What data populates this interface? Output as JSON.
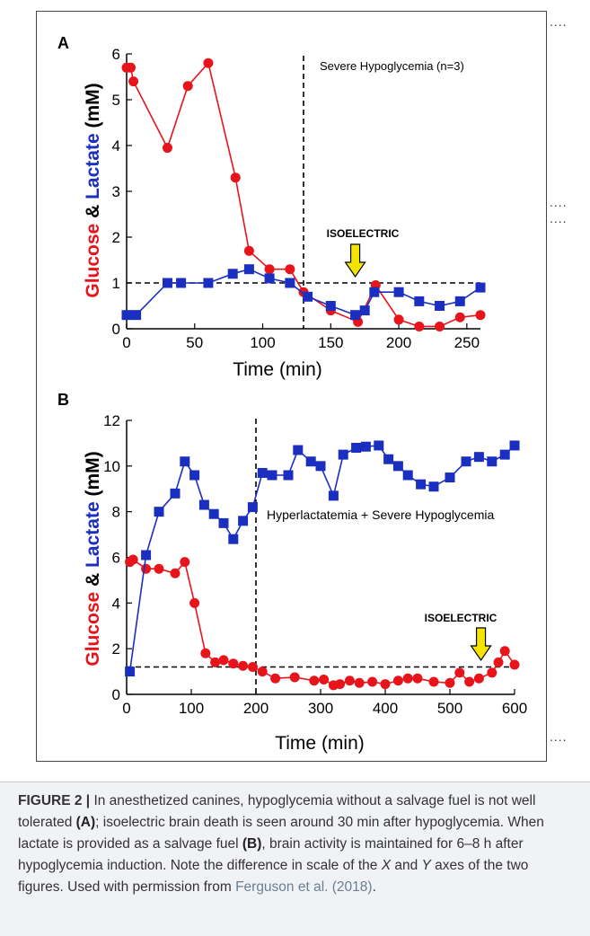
{
  "panels": [
    {
      "label": "A",
      "annotation": "Severe Hypoglycemia (n=3)",
      "isoelectric_label": "ISOELECTRIC",
      "ylabel": {
        "part1": "Glucose",
        "part2": " & ",
        "part3": "Lactate",
        "part4": " (mM)"
      },
      "xlabel": "Time (min)"
    },
    {
      "label": "B",
      "annotation": "Hyperlactatemia + Severe Hypoglycemia",
      "isoelectric_label": "ISOELECTRIC",
      "ylabel": {
        "part1": "Glucose",
        "part2": " & ",
        "part3": "Lactate",
        "part4": " (mM)"
      },
      "xlabel": "Time (min)"
    }
  ],
  "chart_data": [
    {
      "type": "line",
      "panel": "A",
      "xlim": [
        0,
        260
      ],
      "ylim": [
        0,
        6
      ],
      "xticks": [
        0,
        50,
        100,
        150,
        200,
        250
      ],
      "yticks": [
        0,
        1,
        2,
        3,
        4,
        5,
        6
      ],
      "colors": {
        "glucose": "#e8141b",
        "lactate": "#1a2fbf",
        "arrow": "#f5e400"
      },
      "series": [
        {
          "marker": "circle",
          "color": "#e8141b",
          "x": [
            0,
            3,
            5,
            30,
            45,
            60,
            80,
            90,
            105,
            120,
            130,
            150,
            170,
            183,
            200,
            215,
            230,
            245,
            260
          ],
          "y": [
            5.7,
            5.7,
            5.4,
            3.95,
            5.3,
            5.8,
            3.3,
            1.7,
            1.3,
            1.3,
            0.8,
            0.4,
            0.15,
            0.95,
            0.2,
            0.05,
            0.05,
            0.25,
            0.3
          ]
        },
        {
          "marker": "square",
          "color": "#1a2fbf",
          "x": [
            0,
            7,
            30,
            40,
            60,
            78,
            90,
            105,
            120,
            133,
            150,
            168,
            175,
            182,
            200,
            215,
            230,
            245,
            260
          ],
          "y": [
            0.3,
            0.3,
            1.0,
            1.0,
            1.0,
            1.2,
            1.3,
            1.1,
            1.0,
            0.7,
            0.5,
            0.3,
            0.4,
            0.8,
            0.8,
            0.6,
            0.5,
            0.6,
            0.9
          ]
        }
      ],
      "reference_hline": 1.0,
      "reference_vline": 130,
      "isoelectric_x": 168
    },
    {
      "type": "line",
      "panel": "B",
      "xlim": [
        0,
        600
      ],
      "ylim": [
        0,
        12
      ],
      "xticks": [
        0,
        100,
        200,
        300,
        400,
        500,
        600
      ],
      "yticks": [
        0,
        2,
        4,
        6,
        8,
        10,
        12
      ],
      "colors": {
        "glucose": "#e8141b",
        "lactate": "#1a2fbf",
        "arrow": "#f5e400"
      },
      "series": [
        {
          "marker": "circle",
          "color": "#e8141b",
          "x": [
            5,
            10,
            30,
            50,
            75,
            90,
            105,
            122,
            137,
            150,
            165,
            180,
            195,
            210,
            230,
            260,
            290,
            305,
            320,
            330,
            345,
            360,
            380,
            400,
            420,
            435,
            450,
            475,
            500,
            515,
            530,
            545,
            565,
            575,
            585,
            600
          ],
          "y": [
            5.8,
            5.9,
            5.5,
            5.5,
            5.3,
            5.8,
            4.0,
            1.8,
            1.4,
            1.5,
            1.35,
            1.25,
            1.2,
            1.0,
            0.7,
            0.75,
            0.6,
            0.65,
            0.4,
            0.45,
            0.6,
            0.5,
            0.55,
            0.45,
            0.6,
            0.7,
            0.7,
            0.55,
            0.5,
            0.95,
            0.55,
            0.7,
            0.95,
            1.4,
            1.9,
            1.3
          ]
        },
        {
          "marker": "square",
          "color": "#1a2fbf",
          "x": [
            5,
            30,
            50,
            75,
            90,
            105,
            120,
            135,
            150,
            165,
            180,
            195,
            210,
            225,
            250,
            265,
            285,
            300,
            320,
            335,
            355,
            370,
            390,
            405,
            420,
            435,
            455,
            475,
            500,
            525,
            545,
            565,
            585,
            600
          ],
          "y": [
            1.0,
            6.1,
            8.0,
            8.8,
            10.2,
            9.6,
            8.3,
            7.9,
            7.5,
            6.8,
            7.6,
            8.2,
            9.7,
            9.6,
            9.6,
            10.7,
            10.2,
            10.0,
            8.7,
            10.5,
            10.8,
            10.85,
            10.9,
            10.3,
            10.0,
            9.6,
            9.2,
            9.1,
            9.5,
            10.2,
            10.4,
            10.2,
            10.5,
            10.9
          ]
        }
      ],
      "reference_hline": 1.2,
      "reference_vline": 200,
      "isoelectric_x": 548
    }
  ],
  "side_dots": [
    "....",
    "....",
    "....",
    "...."
  ],
  "caption": {
    "label": "FIGURE 2 |",
    "t1": " In anesthetized canines, hypoglycemia without a salvage fuel is not well tolerated ",
    "ref_a": "(A)",
    "t2": "; isoelectric brain death is seen around 30 min after hypoglycemia. When lactate is provided as a salvage fuel ",
    "ref_b": "(B)",
    "t3": ", brain activity is maintained for 6–8 h after hypoglycemia induction. Note the difference in scale of the ",
    "x_axis": "X",
    "t4": " and ",
    "y_axis": "Y",
    "t5": " axes of the two figures. Used with permission from ",
    "credit": "Ferguson et al. (2018)",
    "t6": "."
  }
}
